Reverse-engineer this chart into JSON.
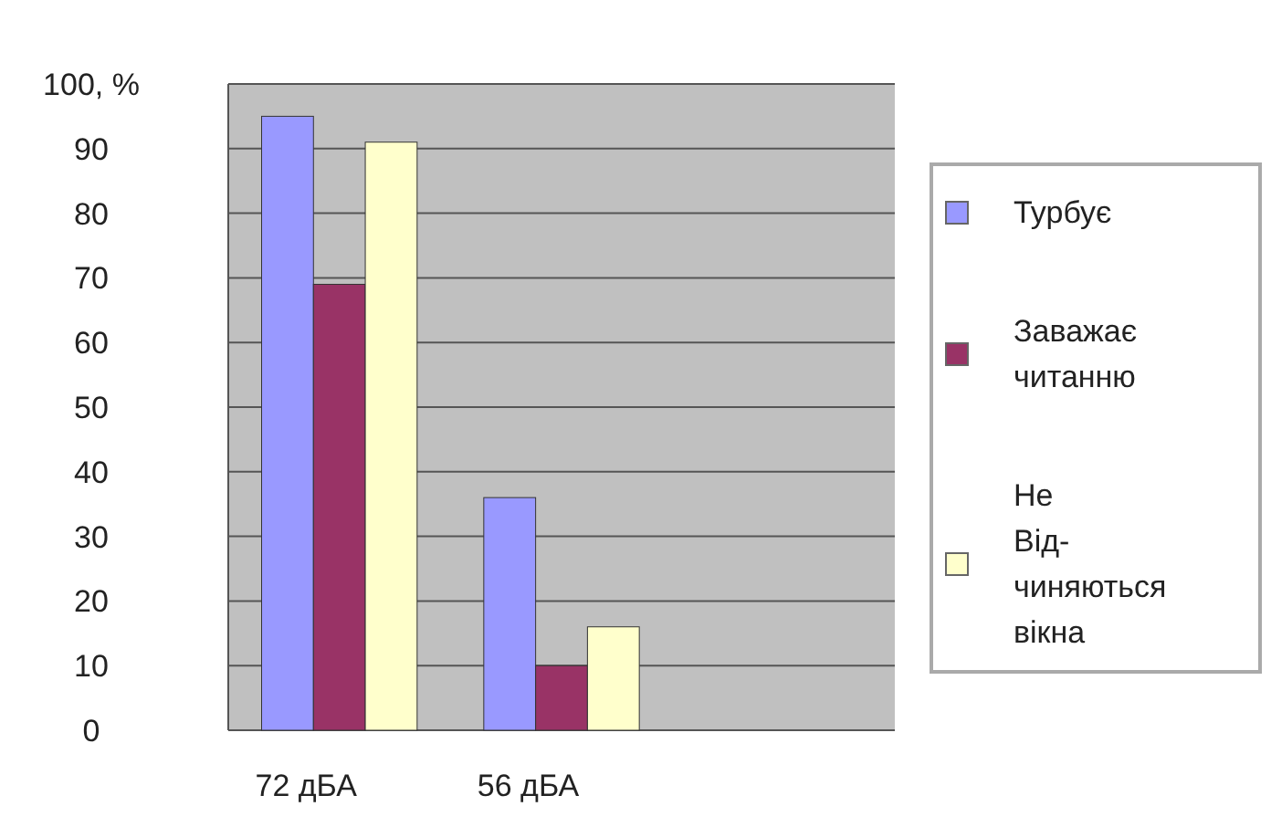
{
  "chart_data": {
    "type": "bar",
    "categories": [
      "72 дБА",
      "56 дБА",
      null
    ],
    "series": [
      {
        "name": "Турбує",
        "color": "#9999ff",
        "values": [
          95,
          36,
          null
        ]
      },
      {
        "name": "Заважає читанню",
        "color": "#993366",
        "values": [
          69,
          10,
          null
        ]
      },
      {
        "name": "Не Від-чиняються вікна",
        "color": "#ffffcc",
        "values": [
          91,
          16,
          null
        ]
      }
    ],
    "ylim": [
      0,
      100
    ],
    "yticks": [
      0,
      10,
      20,
      30,
      40,
      50,
      60,
      70,
      80,
      90,
      {
        "value": 100,
        "label": "100, %"
      }
    ],
    "grid": "y",
    "legend": "right"
  }
}
